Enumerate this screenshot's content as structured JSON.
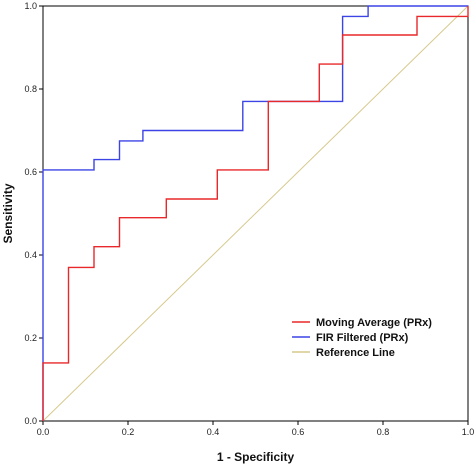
{
  "chart_data": {
    "type": "line",
    "xlabel": "1 - Specificity",
    "ylabel": "Sensitivity",
    "xlim": [
      0,
      1
    ],
    "ylim": [
      0,
      1
    ],
    "xticks": [
      "0.0",
      "0.2",
      "0.4",
      "0.6",
      "0.8",
      "1.0"
    ],
    "yticks": [
      "0.0",
      "0.2",
      "0.4",
      "0.6",
      "0.8",
      "1.0"
    ],
    "grid": false,
    "legend_position": "bottom-right",
    "series": [
      {
        "name": "Moving Average (PRx)",
        "color": "#e8282a",
        "points": [
          [
            0,
            0
          ],
          [
            0,
            0.14
          ],
          [
            0.06,
            0.14
          ],
          [
            0.06,
            0.37
          ],
          [
            0.12,
            0.37
          ],
          [
            0.12,
            0.42
          ],
          [
            0.18,
            0.42
          ],
          [
            0.18,
            0.49
          ],
          [
            0.29,
            0.49
          ],
          [
            0.29,
            0.535
          ],
          [
            0.41,
            0.535
          ],
          [
            0.41,
            0.605
          ],
          [
            0.53,
            0.605
          ],
          [
            0.53,
            0.77
          ],
          [
            0.65,
            0.77
          ],
          [
            0.65,
            0.86
          ],
          [
            0.705,
            0.86
          ],
          [
            0.705,
            0.93
          ],
          [
            0.88,
            0.93
          ],
          [
            0.88,
            0.975
          ],
          [
            1,
            0.975
          ],
          [
            1,
            1
          ]
        ]
      },
      {
        "name": "FIR Filtered (PRx)",
        "color": "#3c44e6",
        "points": [
          [
            0,
            0
          ],
          [
            0,
            0.605
          ],
          [
            0.12,
            0.605
          ],
          [
            0.12,
            0.63
          ],
          [
            0.18,
            0.63
          ],
          [
            0.18,
            0.675
          ],
          [
            0.235,
            0.675
          ],
          [
            0.235,
            0.7
          ],
          [
            0.47,
            0.7
          ],
          [
            0.47,
            0.77
          ],
          [
            0.705,
            0.77
          ],
          [
            0.705,
            0.975
          ],
          [
            0.765,
            0.975
          ],
          [
            0.765,
            1
          ],
          [
            1,
            1
          ]
        ]
      },
      {
        "name": "Reference Line",
        "color": "#d6c98c",
        "points": [
          [
            0,
            0
          ],
          [
            1,
            1
          ]
        ]
      }
    ]
  }
}
